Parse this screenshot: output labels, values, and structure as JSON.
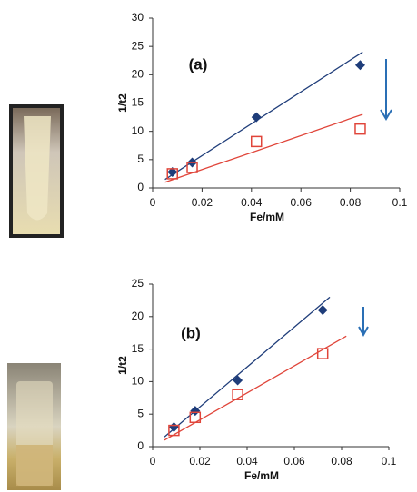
{
  "chart_data": [
    {
      "type": "scatter",
      "annotation": "(a)",
      "xlabel": "Fe/mM",
      "ylabel": "1/t2",
      "xlim": [
        0,
        0.1
      ],
      "xticks": [
        0,
        0.02,
        0.04,
        0.06,
        0.08,
        0.1
      ],
      "ylim": [
        0,
        30
      ],
      "yticks": [
        0,
        5,
        10,
        15,
        20,
        25,
        30
      ],
      "grid": false,
      "series": [
        {
          "color": "#1f3d7a",
          "marker": "diamond",
          "x": [
            0.008,
            0.016,
            0.042,
            0.084
          ],
          "values": [
            2.8,
            4.5,
            12.5,
            21.7
          ],
          "trendline": {
            "color": "#1f3d7a",
            "x": [
              0.005,
              0.085
            ],
            "y": [
              1.5,
              24
            ]
          }
        },
        {
          "color": "#e0453a",
          "marker": "square",
          "x": [
            0.008,
            0.016,
            0.042,
            0.084
          ],
          "values": [
            2.5,
            3.6,
            8.2,
            10.4
          ],
          "trendline": {
            "color": "#e0453a",
            "x": [
              0.005,
              0.085
            ],
            "y": [
              1,
              13
            ]
          }
        }
      ]
    },
    {
      "type": "scatter",
      "annotation": "(b)",
      "xlabel": "Fe/mM",
      "ylabel": "1/t2",
      "xlim": [
        0,
        0.1
      ],
      "xticks": [
        0,
        0.02,
        0.04,
        0.06,
        0.08,
        0.1
      ],
      "ylim": [
        0,
        25
      ],
      "yticks": [
        0,
        5,
        10,
        15,
        20,
        25
      ],
      "grid": false,
      "series": [
        {
          "color": "#1f3d7a",
          "marker": "diamond",
          "x": [
            0.009,
            0.018,
            0.036,
            0.072
          ],
          "values": [
            3,
            5.5,
            10.2,
            21
          ],
          "trendline": {
            "color": "#1f3d7a",
            "x": [
              0.005,
              0.075
            ],
            "y": [
              1.5,
              23
            ]
          }
        },
        {
          "color": "#e0453a",
          "marker": "square",
          "x": [
            0.009,
            0.018,
            0.036,
            0.072
          ],
          "values": [
            2.5,
            4.5,
            8,
            14.3
          ],
          "trendline": {
            "color": "#e0453a",
            "x": [
              0.005,
              0.082
            ],
            "y": [
              1,
              17
            ]
          }
        }
      ]
    }
  ]
}
